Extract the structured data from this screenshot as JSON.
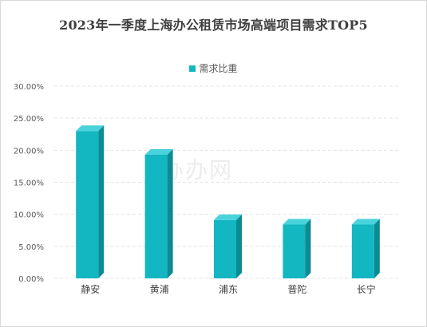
{
  "chart_data": {
    "type": "bar",
    "title": "2023年一季度上海办公租赁市场高端项目需求TOP5",
    "categories": [
      "静安",
      "黄浦",
      "浦东",
      "普陀",
      "长宁"
    ],
    "series": [
      {
        "name": "需求比重",
        "values": [
          0.23,
          0.193,
          0.091,
          0.084,
          0.084
        ]
      }
    ],
    "ylim": [
      0,
      0.3
    ],
    "yticks": [
      0,
      0.05,
      0.1,
      0.15,
      0.2,
      0.25,
      0.3
    ],
    "ytick_labels": [
      "0.00%",
      "5.00%",
      "10.00%",
      "15.00%",
      "20.00%",
      "25.00%",
      "30.00%"
    ],
    "xlabel": "",
    "ylabel": "",
    "grid": true,
    "legend_position": "top",
    "bar_style": "3d",
    "colors": {
      "front": "#13b7c2",
      "side": "#0c8b93",
      "top": "#49d3dc",
      "grid": "#e3e3e3"
    }
  },
  "watermark": "办办网"
}
